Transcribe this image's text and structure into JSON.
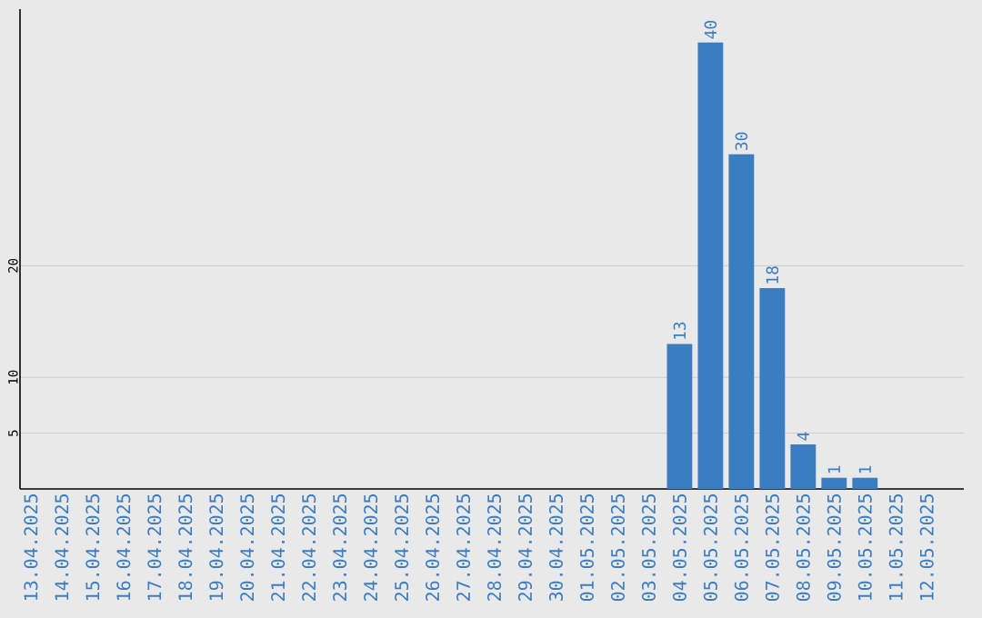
{
  "chart_data": {
    "type": "bar",
    "categories": [
      "13.04.2025",
      "14.04.2025",
      "15.04.2025",
      "16.04.2025",
      "17.04.2025",
      "18.04.2025",
      "19.04.2025",
      "20.04.2025",
      "21.04.2025",
      "22.04.2025",
      "23.04.2025",
      "24.04.2025",
      "25.04.2025",
      "26.04.2025",
      "27.04.2025",
      "28.04.2025",
      "29.04.2025",
      "30.04.2025",
      "01.05.2025",
      "02.05.2025",
      "03.05.2025",
      "04.05.2025",
      "05.05.2025",
      "06.05.2025",
      "07.05.2025",
      "08.05.2025",
      "09.05.2025",
      "10.05.2025",
      "11.05.2025",
      "12.05.2025"
    ],
    "values": [
      0,
      0,
      0,
      0,
      0,
      0,
      0,
      0,
      0,
      0,
      0,
      0,
      0,
      0,
      0,
      0,
      0,
      0,
      0,
      0,
      0,
      13,
      40,
      30,
      18,
      4,
      1,
      1,
      0,
      0
    ],
    "value_labels": [
      null,
      null,
      null,
      null,
      null,
      null,
      null,
      null,
      null,
      null,
      null,
      null,
      null,
      null,
      null,
      null,
      null,
      null,
      null,
      null,
      null,
      "13",
      "40",
      "30",
      "18",
      "4",
      "1",
      "1",
      null,
      null
    ],
    "color": "#3b7dc1",
    "ylim": [
      0,
      43
    ],
    "yticks": [
      5,
      10,
      20
    ],
    "grid": "y"
  }
}
